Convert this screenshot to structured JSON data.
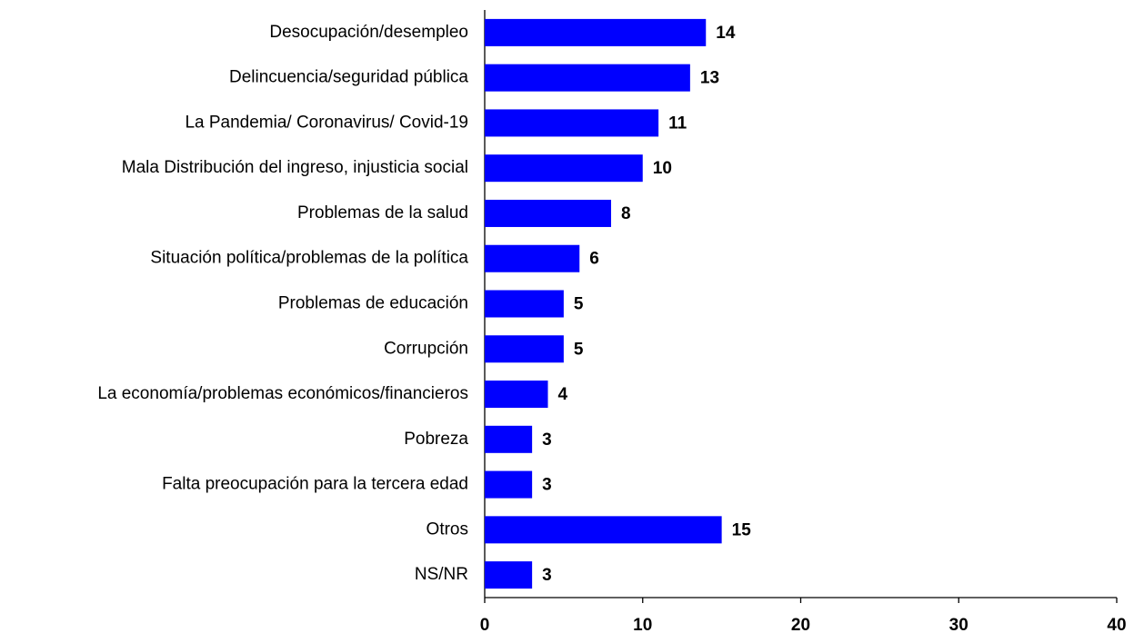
{
  "chart_data": {
    "type": "bar",
    "orientation": "horizontal",
    "categories": [
      "Desocupación/desempleo",
      "Delincuencia/seguridad pública",
      "La Pandemia/ Coronavirus/ Covid-19",
      "Mala Distribución del ingreso, injusticia social",
      "Problemas de la salud",
      "Situación política/problemas de la política",
      "Problemas de educación",
      "Corrupción",
      "La economía/problemas económicos/financieros",
      "Pobreza",
      "Falta preocupación para la tercera edad",
      "Otros",
      "NS/NR"
    ],
    "values": [
      14,
      13,
      11,
      10,
      8,
      6,
      5,
      5,
      4,
      3,
      3,
      15,
      3
    ],
    "color": "#0000ff",
    "xlim": [
      0,
      40
    ],
    "xticks": [
      0,
      10,
      20,
      30,
      40
    ],
    "grid": false
  }
}
